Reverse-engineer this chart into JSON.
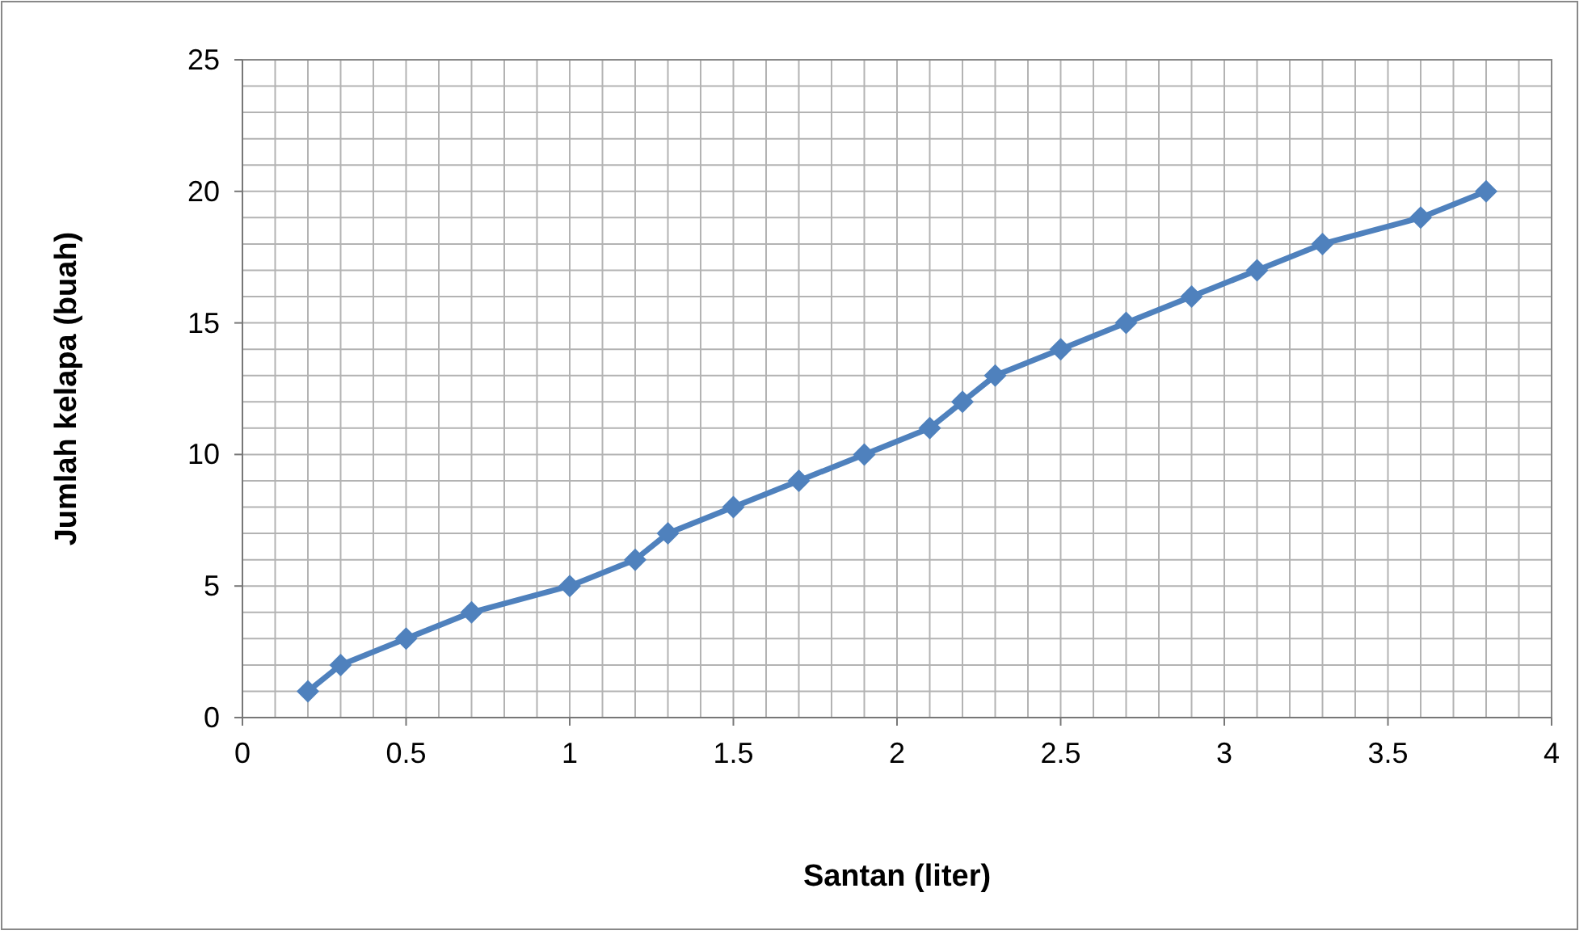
{
  "chart_data": {
    "type": "line",
    "xlabel": "Santan (liter)",
    "ylabel": "Jumlah kelapa (buah)",
    "x": [
      0.2,
      0.3,
      0.5,
      0.7,
      1,
      1.2,
      1.3,
      1.5,
      1.7,
      1.9,
      2.1,
      2.2,
      2.3,
      2.5,
      2.7,
      2.9,
      3.1,
      3.3,
      3.6,
      3.8
    ],
    "series": [
      {
        "color": "#4f81bd",
        "values": [
          1,
          2,
          3,
          4,
          5,
          6,
          7,
          8,
          9,
          10,
          11,
          12,
          13,
          14,
          15,
          16,
          17,
          18,
          19,
          20
        ]
      }
    ],
    "xlim": [
      0,
      4
    ],
    "xticks": [
      0,
      0.5,
      1,
      1.5,
      2,
      2.5,
      3,
      3.5,
      4
    ],
    "ylim": [
      0,
      25
    ],
    "yticks": [
      0,
      5,
      10,
      15,
      20,
      25
    ],
    "grid": true,
    "marker": "diamond",
    "line_style": "solid"
  }
}
